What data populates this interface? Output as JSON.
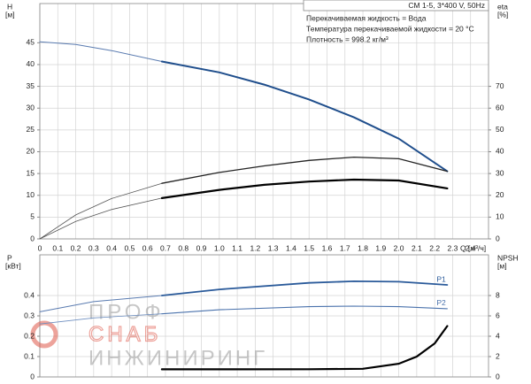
{
  "chart_data": [
    {
      "type": "line",
      "title": "CM 1-5, 3*400 V, 50Hz",
      "annotations": [
        "Перекачиваемая жидкость = Вода",
        "Температура перекачиваемой жидкости = 20 °C",
        "Плотность = 998.2 кг/м³"
      ],
      "ylabel": "H",
      "ylabel_unit": "[м]",
      "y2label": "eta",
      "y2label_unit": "[%]",
      "xlabel": "Q [м³/ч]",
      "xlim": [
        0,
        2.5
      ],
      "xticks": [
        0,
        0.1,
        0.2,
        0.3,
        0.4,
        0.5,
        0.6,
        0.7,
        0.8,
        0.9,
        {
          "value": 1,
          "label": "1.0"
        },
        1.1,
        1.2,
        1.3,
        1.4,
        1.5,
        1.6,
        1.7,
        1.8,
        1.9,
        {
          "value": 2,
          "label": "2.0"
        },
        2.1,
        2.2,
        2.3,
        2.4
      ],
      "ylim": [
        0,
        54
      ],
      "yticks": [
        0,
        5,
        10,
        15,
        20,
        25,
        30,
        35,
        40,
        45
      ],
      "y2lim": [
        0,
        108
      ],
      "y2ticks": [
        0,
        10,
        20,
        30,
        40,
        50,
        60,
        70
      ],
      "grid": true,
      "series": [
        {
          "color": "#5a7bb0",
          "width": 1,
          "x": [
            0,
            0.2,
            0.4,
            0.68
          ],
          "values": [
            45.2,
            44.6,
            43.2,
            40.7
          ]
        },
        {
          "color": "#1f4e8c",
          "width": 2,
          "x": [
            0.68,
            1.0,
            1.25,
            1.5,
            1.75,
            2.0,
            2.27
          ],
          "values": [
            40.7,
            38.2,
            35.4,
            32.0,
            27.9,
            23.0,
            15.5
          ]
        },
        {
          "color": "#555555",
          "width": 0.8,
          "axis": "y2",
          "x": [
            0,
            0.2,
            0.4,
            0.68
          ],
          "values": [
            0,
            11,
            18.5,
            25.5
          ]
        },
        {
          "color": "#222222",
          "width": 1.3,
          "axis": "y2",
          "x": [
            0.68,
            1.0,
            1.25,
            1.5,
            1.75,
            2.0,
            2.27
          ],
          "values": [
            25.5,
            30.5,
            33.5,
            36,
            37.5,
            36.8,
            31
          ]
        },
        {
          "color": "#555555",
          "width": 0.8,
          "axis": "y2",
          "x": [
            0,
            0.2,
            0.4,
            0.68
          ],
          "values": [
            0,
            8,
            13.5,
            18.7
          ]
        },
        {
          "color": "#000000",
          "width": 2.2,
          "axis": "y2",
          "x": [
            0.68,
            1.0,
            1.25,
            1.5,
            1.75,
            2.0,
            2.27
          ],
          "values": [
            18.7,
            22.5,
            24.8,
            26.3,
            27.2,
            26.8,
            23.2
          ]
        }
      ]
    },
    {
      "type": "line",
      "ylabel": "P",
      "ylabel_unit": "[кВт]",
      "y2label": "NPSH",
      "y2label_unit": "[м]",
      "xlim": [
        0,
        2.5
      ],
      "ylim": [
        0,
        0.6
      ],
      "yticks": [
        0,
        0.1,
        0.2,
        0.3,
        0.4
      ],
      "y2lim": [
        0,
        12
      ],
      "y2ticks": [
        0,
        2,
        4,
        6,
        8
      ],
      "grid": true,
      "series": [
        {
          "color": "#5a7bb0",
          "width": 1,
          "x": [
            0,
            0.3,
            0.68
          ],
          "values": [
            0.32,
            0.37,
            0.4
          ]
        },
        {
          "name": "P1",
          "color": "#2a5a9a",
          "width": 1.8,
          "x": [
            0.68,
            1.0,
            1.5,
            1.75,
            2.0,
            2.27
          ],
          "values": [
            0.4,
            0.43,
            0.462,
            0.47,
            0.468,
            0.452
          ]
        },
        {
          "color": "#6e8fc0",
          "width": 0.8,
          "x": [
            0,
            0.3,
            0.68
          ],
          "values": [
            0.26,
            0.29,
            0.31
          ]
        },
        {
          "name": "P2",
          "color": "#4a72ac",
          "width": 1.1,
          "x": [
            0.68,
            1.0,
            1.5,
            1.75,
            2.0,
            2.27
          ],
          "values": [
            0.31,
            0.33,
            0.345,
            0.348,
            0.345,
            0.335
          ]
        },
        {
          "color": "#000000",
          "width": 2.2,
          "axis": "y2",
          "x": [
            0.68,
            1.0,
            1.5,
            1.8,
            2.0,
            2.1,
            2.2,
            2.27
          ],
          "values": [
            0.75,
            0.75,
            0.76,
            0.8,
            1.3,
            2.0,
            3.3,
            5.0
          ]
        }
      ]
    }
  ],
  "watermark": [
    "ПРОФ",
    "СНАБ",
    "ИНЖИНИРИНГ"
  ]
}
